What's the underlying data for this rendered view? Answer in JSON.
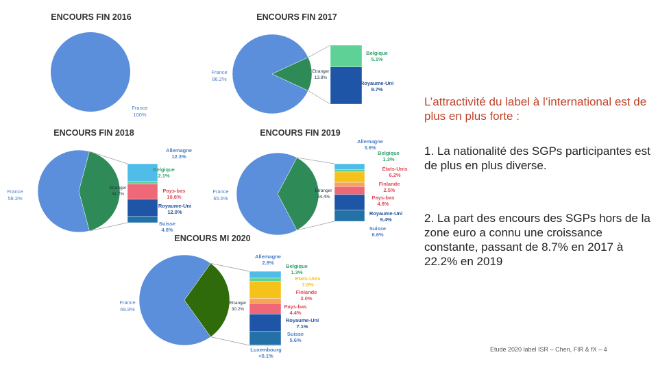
{
  "colors": {
    "france": "#5b8fdc",
    "etranger": "#2e8b57",
    "etranger_mi2020": "#2f6b0a",
    "belgique": "#5ed196",
    "royaume_uni": "#1f55a6",
    "allemagne": "#4fbde8",
    "pays_bas": "#ef6877",
    "suisse": "#2471a8",
    "etats_unis": "#f5c21b",
    "finlande": "#f7a35c",
    "luxembourg": "#3b6fb5",
    "label_blue": "#4a7fc7",
    "label_red": "#e04a5a",
    "label_green": "#2fa36b",
    "label_orange": "#e88a2e",
    "label_navy": "#1f4f9a",
    "headline": "#c0442a"
  },
  "chart_data": [
    {
      "type": "pie",
      "title": "ENCOURS  FIN 2016",
      "slices": [
        {
          "label": "France",
          "value": 100,
          "text": "100%"
        }
      ]
    },
    {
      "type": "pie",
      "title": "ENCOURS  FIN 2017",
      "slices": [
        {
          "label": "France",
          "value": 86.2,
          "text": "86.2%"
        },
        {
          "label": "Etranger",
          "value": 13.8,
          "text": "13.8%"
        }
      ],
      "breakdown": [
        {
          "label": "Belgique",
          "value": 5.1,
          "text": "5.1%"
        },
        {
          "label": "Royaume-Uni",
          "value": 8.7,
          "text": "8.7%"
        }
      ]
    },
    {
      "type": "pie",
      "title": "ENCOURS  FIN 2018",
      "slices": [
        {
          "label": "France",
          "value": 58.3,
          "text": "58.3%"
        },
        {
          "label": "Etranger",
          "value": 41.7,
          "text": "41.7%"
        }
      ],
      "breakdown": [
        {
          "label": "Allemagne",
          "value": 12.3,
          "text": "12.3%"
        },
        {
          "label": "Belgique",
          "value": 2.1,
          "text": "2.1%"
        },
        {
          "label": "Pays-bas",
          "value": 10.8,
          "text": "10.8%"
        },
        {
          "label": "Royaume-Uni",
          "value": 12.0,
          "text": "12.0%"
        },
        {
          "label": "Suisse",
          "value": 4.6,
          "text": "4.6%"
        }
      ]
    },
    {
      "type": "pie",
      "title": "ENCOURS  FIN 2019",
      "slices": [
        {
          "label": "France",
          "value": 65.6,
          "text": "65.6%"
        },
        {
          "label": "Etranger",
          "value": 34.4,
          "text": "34.4%"
        }
      ],
      "breakdown": [
        {
          "label": "Allemagne",
          "value": 3.6,
          "text": "3.6%"
        },
        {
          "label": "Belgique",
          "value": 1.3,
          "text": "1.3%"
        },
        {
          "label": "États-Unis",
          "value": 6.2,
          "text": "6.2%"
        },
        {
          "label": "Finlande",
          "value": 2.5,
          "text": "2.5%"
        },
        {
          "label": "Pays-bas",
          "value": 4.8,
          "text": "4.8%"
        },
        {
          "label": "Royaume-Uni",
          "value": 9.4,
          "text": "9.4%"
        },
        {
          "label": "Suisse",
          "value": 6.6,
          "text": "6.6%"
        }
      ]
    },
    {
      "type": "pie",
      "title": "ENCOURS MI 2020",
      "slices": [
        {
          "label": "France",
          "value": 69.8,
          "text": "69.8%"
        },
        {
          "label": "Etranger",
          "value": 30.2,
          "text": "30.2%"
        }
      ],
      "breakdown": [
        {
          "label": "Allemagne",
          "value": 2.8,
          "text": "2.8%"
        },
        {
          "label": "Belgique",
          "value": 1.3,
          "text": "1.3%"
        },
        {
          "label": "Etats-Unis",
          "value": 7.0,
          "text": "7.0%"
        },
        {
          "label": "Finlande",
          "value": 2.0,
          "text": "2.0%"
        },
        {
          "label": "Pays-bas",
          "value": 4.4,
          "text": "4.4%"
        },
        {
          "label": "Royaume-Uni",
          "value": 7.1,
          "text": "7.1%"
        },
        {
          "label": "Suisse",
          "value": 5.6,
          "text": "5.6%"
        },
        {
          "label": "Luxembourg",
          "value": 0.1,
          "text": "<0.1%"
        }
      ]
    }
  ],
  "text": {
    "headline": "L’attractivité du label à l’international est de plus en plus forte :",
    "point1": "1. La nationalité des SGPs participantes est de plus en plus diverse.",
    "point2": "2. La part des encours des SGPs hors de la zone euro a connu une croissance constante, passant de 8.7% en 2017 à 22.2% en 2019",
    "footer": "Etude 2020 label ISR – Chen, FIR & fX – 4"
  }
}
